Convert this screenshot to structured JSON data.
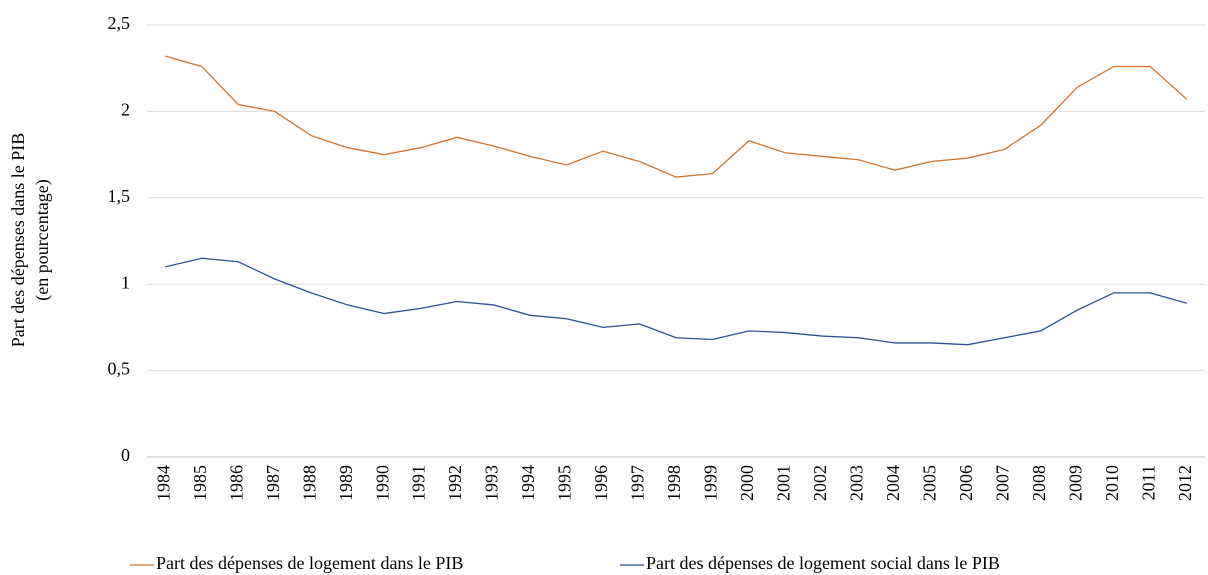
{
  "chart_data": {
    "type": "line",
    "y_label": [
      "Part des dépenses dans le PIB",
      "(en pourcentage)"
    ],
    "categories": [
      "1984",
      "1985",
      "1986",
      "1987",
      "1988",
      "1989",
      "1990",
      "1991",
      "1992",
      "1993",
      "1994",
      "1995",
      "1996",
      "1997",
      "1998",
      "1999",
      "2000",
      "2001",
      "2002",
      "2003",
      "2004",
      "2005",
      "2006",
      "2007",
      "2008",
      "2009",
      "2010",
      "2011",
      "2012"
    ],
    "series": [
      {
        "name": "Part des dépenses de logement dans le PIB",
        "color": "#d0742f",
        "values": [
          2.32,
          2.26,
          2.04,
          2.0,
          1.86,
          1.79,
          1.75,
          1.79,
          1.85,
          1.8,
          1.74,
          1.69,
          1.77,
          1.71,
          1.62,
          1.64,
          1.83,
          1.76,
          1.74,
          1.72,
          1.66,
          1.71,
          1.73,
          1.78,
          1.92,
          2.14,
          2.26,
          2.26,
          2.07
        ]
      },
      {
        "name": "Part des dépenses de logement social dans le PIB",
        "color": "#2f4f8f",
        "values": [
          1.1,
          1.15,
          1.13,
          1.03,
          0.95,
          0.88,
          0.83,
          0.86,
          0.9,
          0.88,
          0.82,
          0.8,
          0.75,
          0.77,
          0.69,
          0.68,
          0.73,
          0.72,
          0.7,
          0.69,
          0.66,
          0.66,
          0.65,
          0.69,
          0.73,
          0.85,
          0.95,
          0.95,
          0.89
        ]
      }
    ],
    "ylim": [
      0,
      2.5
    ],
    "yticks": [
      0,
      {
        "value": 0.5,
        "label": "0,5"
      },
      1,
      {
        "value": 1.5,
        "label": "1,5"
      },
      2,
      {
        "value": 2.5,
        "label": "2,5"
      }
    ],
    "grid": true,
    "legend": "bottom"
  }
}
